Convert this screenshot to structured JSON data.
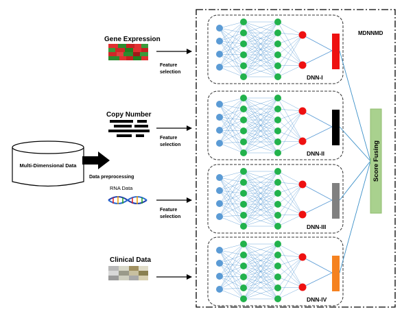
{
  "framework_label": "MDNNMD",
  "source": {
    "label": "Multi-Dimensional Data",
    "step_label": "Data preprocessing"
  },
  "feature_selection_label": "Feature\nselection",
  "data_types": [
    {
      "label": "Gene Expression",
      "icon": "heatmap-icon"
    },
    {
      "label": "Copy Number",
      "icon": "copy-number-icon"
    },
    {
      "label": "RNA Data",
      "icon": "dna-helix-icon"
    },
    {
      "label": "Clinical Data",
      "icon": "clinical-grid-icon"
    }
  ],
  "networks": [
    {
      "label": "DNN-I",
      "output_color": "#ee1111"
    },
    {
      "label": "DNN-II",
      "output_color": "#000000"
    },
    {
      "label": "DNN-III",
      "output_color": "#808080"
    },
    {
      "label": "DNN-IV",
      "output_color": "#f58220"
    }
  ],
  "fusion_label": "Score Fusing",
  "colors": {
    "input_node": "#5b9bd5",
    "hidden_node": "#22b24c",
    "pre_output_node": "#ee1111",
    "edge": "#5b9bd5",
    "fusion_box": "#a9d18e"
  }
}
